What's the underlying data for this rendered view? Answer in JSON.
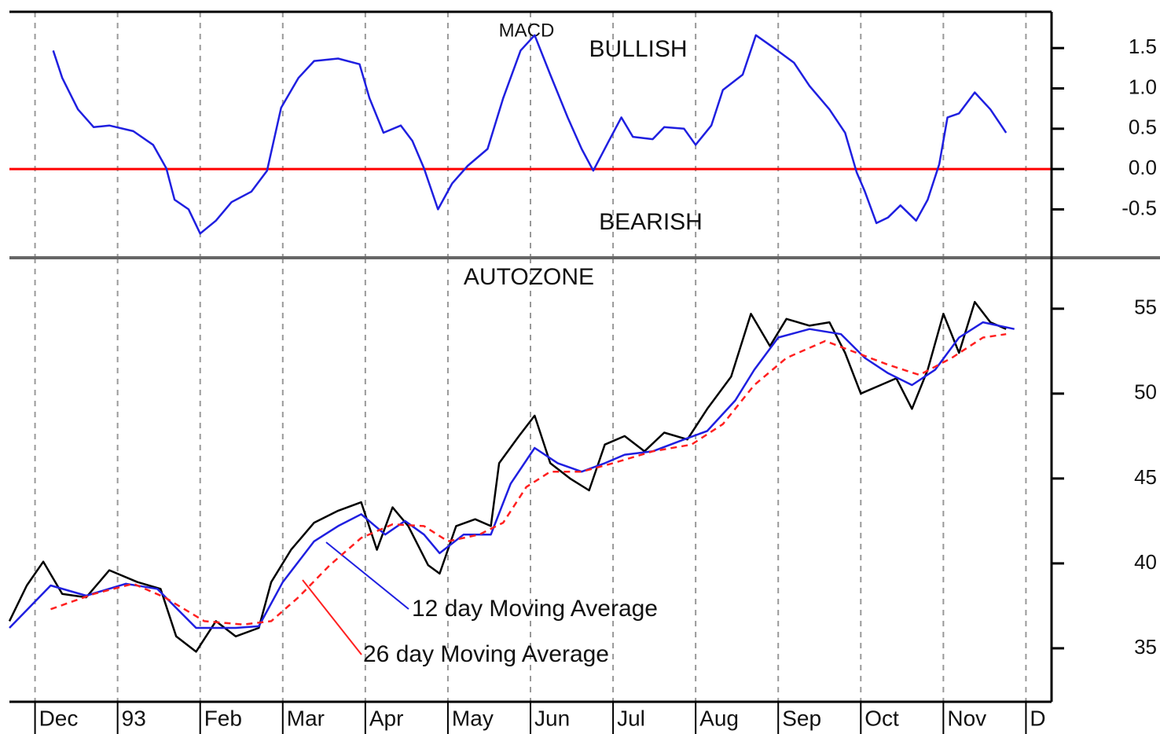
{
  "chart_data": [
    {
      "type": "line",
      "annotations": [
        "MACD",
        "BULLISH",
        "BEARISH"
      ],
      "xlim": [
        -0.31,
        12.31
      ],
      "ylim": [
        -1.1,
        1.95
      ],
      "yticks": [
        1.5,
        {
          "value": 1.0,
          "label": "1.0"
        },
        0.5,
        {
          "value": 0,
          "label": "0.0"
        },
        -0.5
      ],
      "zero_line_color": "#ff0000",
      "grid": true,
      "series": [
        {
          "color": "#1f1fe0",
          "x": [
            0.22,
            0.33,
            0.52,
            0.71,
            0.9,
            1.19,
            1.43,
            1.59,
            1.69,
            1.86,
            2.0,
            2.19,
            2.38,
            2.62,
            2.81,
            2.98,
            3.19,
            3.38,
            3.67,
            3.93,
            4.05,
            4.22,
            4.43,
            4.57,
            4.71,
            4.88,
            5.05,
            5.24,
            5.48,
            5.67,
            5.88,
            6.05,
            6.24,
            6.45,
            6.62,
            6.76,
            6.95,
            7.1,
            7.24,
            7.48,
            7.62,
            7.86,
            8.0,
            8.19,
            8.33,
            8.57,
            8.73,
            8.95,
            9.19,
            9.38,
            9.62,
            9.81,
            9.95,
            10.05,
            10.19,
            10.33,
            10.48,
            10.67,
            10.81,
            10.95,
            11.05,
            11.19,
            11.38,
            11.57,
            11.76
          ],
          "values": [
            1.47,
            1.13,
            0.74,
            0.52,
            0.54,
            0.47,
            0.3,
            0.01,
            -0.38,
            -0.5,
            -0.8,
            -0.64,
            -0.41,
            -0.28,
            -0.02,
            0.76,
            1.13,
            1.34,
            1.37,
            1.3,
            0.88,
            0.45,
            0.54,
            0.35,
            0.01,
            -0.5,
            -0.18,
            0.04,
            0.25,
            0.88,
            1.47,
            1.66,
            1.17,
            0.64,
            0.25,
            -0.02,
            0.35,
            0.64,
            0.4,
            0.37,
            0.52,
            0.5,
            0.3,
            0.54,
            0.98,
            1.17,
            1.66,
            1.5,
            1.32,
            1.03,
            0.74,
            0.45,
            -0.04,
            -0.28,
            -0.67,
            -0.6,
            -0.45,
            -0.64,
            -0.38,
            0.06,
            0.64,
            0.69,
            0.95,
            0.74,
            0.45
          ]
        }
      ]
    },
    {
      "type": "line",
      "title": "AUTOZONE",
      "annotations": [
        "12 day Moving Average",
        "26 day Moving Average"
      ],
      "xlim": [
        -0.31,
        12.31
      ],
      "ylim": [
        31.85,
        58
      ],
      "xticks": [
        {
          "value": 0,
          "label": "Dec"
        },
        {
          "value": 1,
          "label": "93"
        },
        {
          "value": 2,
          "label": "Feb"
        },
        {
          "value": 3,
          "label": "Mar"
        },
        {
          "value": 4,
          "label": "Apr"
        },
        {
          "value": 5,
          "label": "May"
        },
        {
          "value": 6,
          "label": "Jun"
        },
        {
          "value": 7,
          "label": "Jul"
        },
        {
          "value": 8,
          "label": "Aug"
        },
        {
          "value": 9,
          "label": "Sep"
        },
        {
          "value": 10,
          "label": "Oct"
        },
        {
          "value": 11,
          "label": "Nov"
        },
        {
          "value": 12,
          "label": "D"
        }
      ],
      "yticks": [
        55,
        50,
        45,
        40,
        35
      ],
      "grid": true,
      "series": [
        {
          "color": "#000000",
          "dash": false,
          "x": [
            -0.31,
            -0.1,
            0.1,
            0.33,
            0.62,
            0.9,
            1.24,
            1.52,
            1.71,
            1.95,
            2.19,
            2.43,
            2.71,
            2.86,
            3.1,
            3.38,
            3.67,
            3.95,
            4.14,
            4.33,
            4.52,
            4.76,
            4.9,
            5.1,
            5.33,
            5.52,
            5.62,
            5.86,
            6.05,
            6.24,
            6.48,
            6.71,
            6.9,
            7.14,
            7.38,
            7.62,
            7.9,
            8.14,
            8.43,
            8.67,
            8.9,
            9.1,
            9.38,
            9.62,
            9.81,
            10.0,
            10.24,
            10.43,
            10.62,
            10.81,
            11.0,
            11.19,
            11.38,
            11.57,
            11.76
          ],
          "values": [
            36.6,
            38.7,
            40.1,
            38.2,
            38.0,
            39.6,
            38.9,
            38.5,
            35.7,
            34.8,
            36.6,
            35.7,
            36.2,
            38.9,
            40.8,
            42.4,
            43.1,
            43.6,
            40.8,
            43.3,
            42.2,
            39.9,
            39.4,
            42.2,
            42.6,
            42.2,
            45.9,
            47.5,
            48.7,
            45.9,
            45.0,
            44.3,
            47.0,
            47.5,
            46.6,
            47.7,
            47.3,
            49.1,
            51.0,
            54.7,
            52.8,
            54.4,
            54.0,
            54.2,
            52.4,
            50.0,
            50.5,
            50.9,
            49.1,
            51.4,
            54.7,
            52.4,
            55.4,
            54.2,
            53.8
          ]
        },
        {
          "color": "#1f1fe0",
          "dash": false,
          "x": [
            -0.31,
            0.19,
            0.62,
            1.1,
            1.48,
            1.95,
            2.43,
            2.71,
            3.0,
            3.38,
            3.67,
            3.95,
            4.24,
            4.48,
            4.71,
            4.9,
            5.19,
            5.52,
            5.76,
            6.05,
            6.33,
            6.62,
            6.9,
            7.14,
            7.48,
            7.86,
            8.14,
            8.48,
            8.71,
            9.0,
            9.38,
            9.76,
            10.05,
            10.33,
            10.62,
            10.9,
            11.19,
            11.48,
            11.86
          ],
          "values": [
            36.2,
            38.7,
            38.1,
            38.8,
            38.5,
            36.2,
            36.2,
            36.3,
            38.9,
            41.3,
            42.2,
            42.9,
            41.7,
            42.5,
            41.7,
            40.6,
            41.7,
            41.7,
            44.7,
            46.8,
            45.9,
            45.4,
            45.9,
            46.4,
            46.6,
            47.3,
            47.8,
            49.6,
            51.4,
            53.3,
            53.8,
            53.5,
            52.1,
            51.2,
            50.5,
            51.4,
            53.3,
            54.2,
            53.8
          ]
        },
        {
          "color": "#ff2020",
          "dash": true,
          "x": [
            0.19,
            0.71,
            1.19,
            1.57,
            2.05,
            2.52,
            2.86,
            3.19,
            3.57,
            3.95,
            4.33,
            4.71,
            5.0,
            5.38,
            5.67,
            5.95,
            6.24,
            6.62,
            7.0,
            7.48,
            7.95,
            8.33,
            8.71,
            9.1,
            9.57,
            9.95,
            10.33,
            10.71,
            11.1,
            11.48,
            11.76
          ],
          "values": [
            37.3,
            38.2,
            38.8,
            38.0,
            36.6,
            36.4,
            36.6,
            38.0,
            39.9,
            41.5,
            42.3,
            42.2,
            41.3,
            41.7,
            42.4,
            44.5,
            45.4,
            45.4,
            45.9,
            46.6,
            47.0,
            48.2,
            50.5,
            52.1,
            53.1,
            52.4,
            51.7,
            51.1,
            52.1,
            53.3,
            53.5
          ]
        }
      ]
    }
  ]
}
